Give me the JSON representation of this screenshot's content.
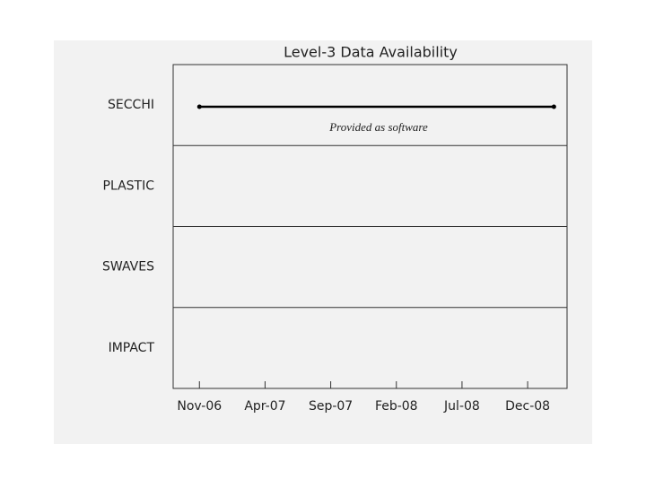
{
  "chart_data": {
    "type": "timeline",
    "title": "Level-3 Data Availability",
    "categories": [
      "SECCHI",
      "PLASTIC",
      "SWAVES",
      "IMPACT"
    ],
    "ranges": [
      [
        "2006-11",
        "2009-02"
      ],
      null,
      null,
      null
    ],
    "annotations": [
      "Provided as software",
      null,
      null,
      null
    ],
    "color": "#000000",
    "xlim": [
      "2006-09",
      "2009-03"
    ],
    "xticks": [
      {
        "value": "2006-11",
        "label": "Nov-06"
      },
      {
        "value": "2007-04",
        "label": "Apr-07"
      },
      {
        "value": "2007-09",
        "label": "Sep-07"
      },
      {
        "value": "2008-02",
        "label": "Feb-08"
      },
      {
        "value": "2008-07",
        "label": "Jul-08"
      },
      {
        "value": "2008-12",
        "label": "Dec-08"
      }
    ]
  }
}
